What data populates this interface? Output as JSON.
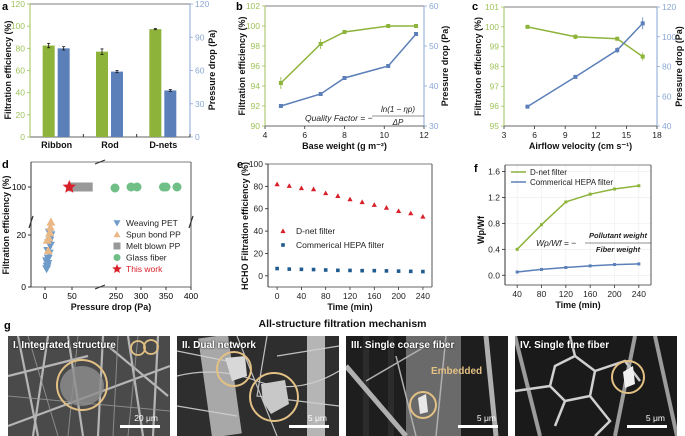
{
  "chart_data": [
    {
      "id": "a",
      "type": "bar",
      "panel_label": "a",
      "categories": [
        "Ribbon",
        "Rod",
        "D-nets"
      ],
      "series": [
        {
          "name": "Filtration efficiency",
          "axis": "left",
          "color": "#8db33a",
          "values": [
            82.5,
            77,
            97.3
          ],
          "errors": [
            2,
            2.5,
            0.5
          ]
        },
        {
          "name": "Pressure drop",
          "axis": "right",
          "color": "#5b7fb8",
          "values": [
            80,
            59,
            42
          ],
          "errors": [
            1.5,
            1,
            0.8
          ]
        }
      ],
      "ylabel": "Filtration efficiency (%)",
      "ylim": [
        0,
        120
      ],
      "yticks": [
        0,
        20,
        40,
        60,
        80,
        100,
        120
      ],
      "y2label": "Pressure drop (Pa)",
      "y2lim": [
        0,
        120
      ],
      "y2ticks": [
        0,
        30,
        60,
        90,
        120
      ]
    },
    {
      "id": "b",
      "type": "line",
      "panel_label": "b",
      "x": [
        4.8,
        6.8,
        8.0,
        10.2,
        11.6
      ],
      "series": [
        {
          "name": "Filtration efficiency",
          "axis": "left",
          "color": "#8db33a",
          "values": [
            94.3,
            98.2,
            99.4,
            100,
            100
          ],
          "errors": [
            0.6,
            0.5,
            0.2,
            0.05,
            0.05
          ]
        },
        {
          "name": "Pressure drop",
          "axis": "right",
          "color": "#5b7fb8",
          "values": [
            35,
            38,
            42,
            45,
            53
          ],
          "errors": [
            0,
            0,
            0,
            0,
            0
          ]
        }
      ],
      "xlabel": "Base weight (g m⁻²)",
      "xlim": [
        4,
        12
      ],
      "xticks": [
        4,
        6,
        8,
        10,
        12
      ],
      "ylabel": "Filtration efficiency (%)",
      "ylim": [
        90,
        102
      ],
      "yticks": [
        90,
        92,
        94,
        96,
        98,
        100,
        102
      ],
      "y2label": "Pressure drop (Pa)",
      "y2lim": [
        30,
        60
      ],
      "y2ticks": [
        30,
        40,
        50,
        60
      ],
      "annotation": "Quality Factor = − ln(1 − ηp) / ΔP"
    },
    {
      "id": "c",
      "type": "line",
      "panel_label": "c",
      "x": [
        5.3,
        10.0,
        14.1,
        16.6
      ],
      "series": [
        {
          "name": "Filtration efficiency",
          "axis": "left",
          "color": "#8db33a",
          "values": [
            100,
            99.5,
            99.4,
            98.5
          ],
          "errors": [
            0.03,
            0.12,
            0.08,
            0.2
          ]
        },
        {
          "name": "Pressure drop",
          "axis": "right",
          "color": "#5b7fb8",
          "values": [
            53,
            73,
            91,
            109
          ],
          "errors": [
            0,
            0.5,
            2,
            4
          ]
        }
      ],
      "xlabel": "Airflow velocity (cm s⁻¹)",
      "xlim": [
        3,
        18
      ],
      "xticks": [
        3,
        6,
        9,
        12,
        15,
        18
      ],
      "ylabel": "Filtration efficiency (%)",
      "ylim": [
        95,
        101
      ],
      "yticks": [
        95,
        96,
        97,
        98,
        99,
        100,
        101
      ],
      "y2label": "Pressure drop (Pa)",
      "y2lim": [
        40,
        120
      ],
      "y2ticks": [
        40,
        60,
        80,
        100,
        120
      ]
    },
    {
      "id": "d",
      "type": "scatter",
      "panel_label": "d",
      "xlabel": "Pressure drop (Pa)",
      "xticks": [
        "0",
        "50",
        "250",
        "300",
        "350",
        "400"
      ],
      "ylabel": "Filtration efficiency (%)",
      "yticks": [
        "0",
        "20",
        "100"
      ],
      "legend_position": "center-right",
      "series": [
        {
          "name": "Weaving PET",
          "marker": "triangle-down",
          "color": "#6f9bc9",
          "points": [
            [
              3,
              7
            ],
            [
              4,
              8
            ],
            [
              5,
              9
            ],
            [
              3,
              10
            ],
            [
              6,
              11
            ],
            [
              8,
              13
            ],
            [
              5,
              14
            ],
            [
              10,
              16
            ],
            [
              7,
              17
            ],
            [
              9,
              18
            ],
            [
              11,
              20
            ],
            [
              8,
              21
            ]
          ]
        },
        {
          "name": "Spun bond PP",
          "marker": "triangle-up",
          "color": "#e9b887",
          "points": [
            [
              6,
              14
            ],
            [
              4,
              18
            ],
            [
              7,
              19
            ],
            [
              9,
              21
            ],
            [
              10,
              23
            ],
            [
              11,
              25
            ]
          ]
        },
        {
          "name": "Melt blown PP",
          "marker": "square",
          "color": "#999999",
          "points": [
            [
              52,
              100
            ],
            [
              58,
              100
            ],
            [
              65,
              100
            ],
            [
              72,
              100
            ],
            [
              80,
              100
            ]
          ]
        },
        {
          "name": "Glass fiber",
          "marker": "circle",
          "color": "#6fbf86",
          "points": [
            [
              248,
              99.5
            ],
            [
              280,
              100
            ],
            [
              292,
              100
            ],
            [
              345,
              100
            ],
            [
              350,
              100
            ],
            [
              372,
              100
            ]
          ]
        },
        {
          "name": "This work",
          "marker": "star",
          "color": "#d8202a",
          "points": [
            [
              45,
              100
            ]
          ]
        }
      ]
    },
    {
      "id": "e",
      "type": "scatter",
      "panel_label": "e",
      "x": [
        0,
        20,
        40,
        60,
        80,
        100,
        120,
        140,
        160,
        180,
        200,
        220,
        240
      ],
      "series": [
        {
          "name": "D-net filter",
          "marker": "triangle-up",
          "color": "#d8202a",
          "values": [
            82,
            80.5,
            78.5,
            77.5,
            74,
            71.5,
            68.5,
            66,
            63.5,
            61,
            58,
            56,
            53
          ]
        },
        {
          "name": "Commerical HEPA filter",
          "marker": "square",
          "color": "#1f5b8f",
          "values": [
            6.5,
            6,
            5.8,
            5.6,
            5.2,
            4.9,
            4.8,
            4.6,
            4.6,
            4.4,
            4.2,
            4.0,
            3.8
          ]
        }
      ],
      "xlabel": "Time (min)",
      "xlim": [
        -15,
        255
      ],
      "xticks": [
        0,
        40,
        80,
        120,
        160,
        200,
        240
      ],
      "ylabel": "HCHO Filtration efficiency (%)",
      "ylim": [
        -10,
        100
      ],
      "yticks": [
        0,
        20,
        40,
        60,
        80,
        100
      ],
      "legend_position": "center-left"
    },
    {
      "id": "f",
      "type": "line",
      "panel_label": "f",
      "x": [
        40,
        80,
        120,
        160,
        200,
        240
      ],
      "series": [
        {
          "name": "D-net filter",
          "color": "#8db33a",
          "values": [
            0.4,
            0.78,
            1.13,
            1.25,
            1.33,
            1.38
          ]
        },
        {
          "name": "Commerical HEPA filter",
          "color": "#5b7fb8",
          "values": [
            0.05,
            0.09,
            0.12,
            0.145,
            0.165,
            0.175
          ]
        }
      ],
      "xlabel": "Time (min)",
      "xlim": [
        20,
        260
      ],
      "xticks": [
        40,
        80,
        120,
        160,
        200,
        240
      ],
      "ylabel": "Wp/Wf",
      "ylim": [
        -0.15,
        1.7
      ],
      "yticks": [
        0.0,
        0.4,
        0.8,
        1.2,
        1.6
      ],
      "grid": true,
      "legend_position": "top-left",
      "annotation": "Wp/Wf = − Pollutant weight / Fiber weight"
    }
  ],
  "panel_g": {
    "label": "g",
    "title": "All-structure filtration mechanism",
    "images": [
      {
        "label": "I. Integrated structure",
        "scale": "20 μm"
      },
      {
        "label": "II. Dual network",
        "scale": "5 μm"
      },
      {
        "label": "III. Single coarse fiber",
        "scale": "5 μm",
        "note": "Embedded"
      },
      {
        "label": "IV. Single fine fiber",
        "scale": "5 μm"
      }
    ]
  },
  "colors": {
    "green": "#8db33a",
    "blue": "#5b7fb8",
    "green_axis": "#9fc25a",
    "blue_axis": "#8aa7d4",
    "highlight": "#e3c084"
  }
}
